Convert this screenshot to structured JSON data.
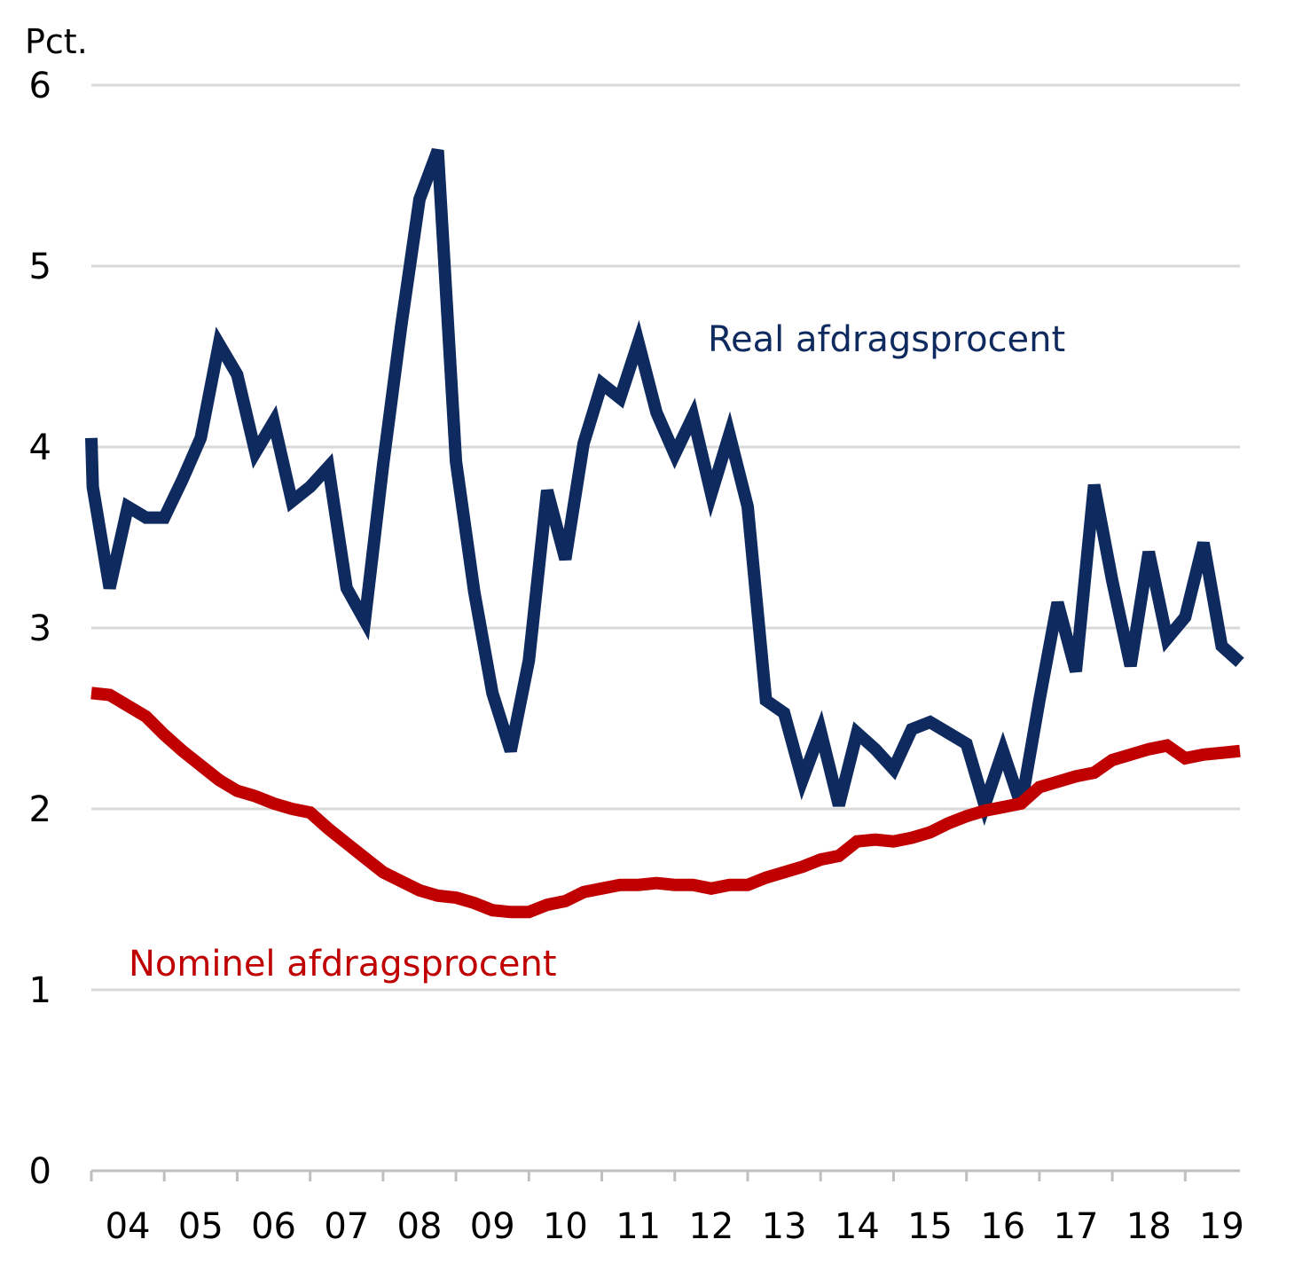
{
  "chart_data": {
    "type": "line",
    "ylabel": "Pct.",
    "ylim": [
      0,
      6
    ],
    "yticks": [
      "0",
      "1",
      "2",
      "3",
      "4",
      "5",
      "6"
    ],
    "xlim": [
      2004,
      2019.75
    ],
    "xticks": [
      "04",
      "05",
      "06",
      "07",
      "08",
      "09",
      "10",
      "11",
      "12",
      "13",
      "14",
      "15",
      "16",
      "17",
      "18",
      "19"
    ],
    "grid": true,
    "colors": {
      "real": "#0e2a5e",
      "nominal": "#c00000",
      "grid": "#d9d9d9",
      "axis": "#bfbfbf"
    },
    "series": [
      {
        "name": "Real afdragsprocent",
        "x": [
          2004.0,
          2004.02,
          2004.25,
          2004.5,
          2004.75,
          2005.0,
          2005.25,
          2005.5,
          2005.75,
          2006.0,
          2006.25,
          2006.5,
          2006.75,
          2007.0,
          2007.25,
          2007.5,
          2007.75,
          2008.0,
          2008.25,
          2008.5,
          2008.75,
          2009.0,
          2009.25,
          2009.5,
          2009.75,
          2010.0,
          2010.25,
          2010.5,
          2010.75,
          2011.0,
          2011.25,
          2011.5,
          2011.75,
          2012.0,
          2012.25,
          2012.5,
          2012.75,
          2013.0,
          2013.25,
          2013.5,
          2013.75,
          2014.0,
          2014.25,
          2014.5,
          2014.75,
          2015.0,
          2015.25,
          2015.5,
          2015.75,
          2016.0,
          2016.25,
          2016.5,
          2016.75,
          2017.0,
          2017.25,
          2017.5,
          2017.75,
          2018.0,
          2018.25,
          2018.5,
          2018.75,
          2019.0,
          2019.25,
          2019.5,
          2019.75
        ],
        "values": [
          4.05,
          3.78,
          3.22,
          3.67,
          3.61,
          3.61,
          3.82,
          4.05,
          4.57,
          4.4,
          3.97,
          4.14,
          3.7,
          3.78,
          3.89,
          3.22,
          3.04,
          3.9,
          4.67,
          5.37,
          5.64,
          3.92,
          3.2,
          2.64,
          2.32,
          2.82,
          3.76,
          3.38,
          4.02,
          4.35,
          4.27,
          4.58,
          4.19,
          3.96,
          4.17,
          3.74,
          4.07,
          3.67,
          2.6,
          2.53,
          2.16,
          2.43,
          2.02,
          2.42,
          2.33,
          2.22,
          2.44,
          2.48,
          2.42,
          2.36,
          2.02,
          2.32,
          2.02,
          2.6,
          3.14,
          2.76,
          3.79,
          3.26,
          2.79,
          3.42,
          2.94,
          3.06,
          3.47,
          2.9,
          2.81
        ]
      },
      {
        "name": "Nominel afdragsprocent",
        "x": [
          2004.0,
          2004.25,
          2004.5,
          2004.75,
          2005.0,
          2005.25,
          2005.5,
          2005.75,
          2006.0,
          2006.25,
          2006.5,
          2006.75,
          2007.0,
          2007.25,
          2007.5,
          2007.75,
          2008.0,
          2008.25,
          2008.5,
          2008.75,
          2009.0,
          2009.25,
          2009.5,
          2009.75,
          2010.0,
          2010.25,
          2010.5,
          2010.75,
          2011.0,
          2011.25,
          2011.5,
          2011.75,
          2012.0,
          2012.25,
          2012.5,
          2012.75,
          2013.0,
          2013.25,
          2013.5,
          2013.75,
          2014.0,
          2014.25,
          2014.5,
          2014.75,
          2015.0,
          2015.25,
          2015.5,
          2015.75,
          2016.0,
          2016.25,
          2016.5,
          2016.75,
          2017.0,
          2017.25,
          2017.5,
          2017.75,
          2018.0,
          2018.25,
          2018.5,
          2018.75,
          2019.0,
          2019.25,
          2019.5,
          2019.75
        ],
        "values": [
          2.64,
          2.63,
          2.57,
          2.51,
          2.41,
          2.32,
          2.24,
          2.16,
          2.1,
          2.07,
          2.03,
          2.0,
          1.98,
          1.89,
          1.81,
          1.73,
          1.65,
          1.6,
          1.55,
          1.52,
          1.51,
          1.48,
          1.44,
          1.43,
          1.43,
          1.47,
          1.49,
          1.54,
          1.56,
          1.58,
          1.58,
          1.59,
          1.58,
          1.58,
          1.56,
          1.58,
          1.58,
          1.62,
          1.65,
          1.68,
          1.72,
          1.74,
          1.82,
          1.83,
          1.82,
          1.84,
          1.87,
          1.92,
          1.96,
          1.99,
          2.01,
          2.03,
          2.12,
          2.15,
          2.18,
          2.2,
          2.27,
          2.3,
          2.33,
          2.35,
          2.28,
          2.3,
          2.31,
          2.32
        ]
      }
    ],
    "annotations": [
      {
        "text": "Real afdragsprocent",
        "series": 0
      },
      {
        "text": "Nominel afdragsprocent",
        "series": 1
      }
    ]
  }
}
